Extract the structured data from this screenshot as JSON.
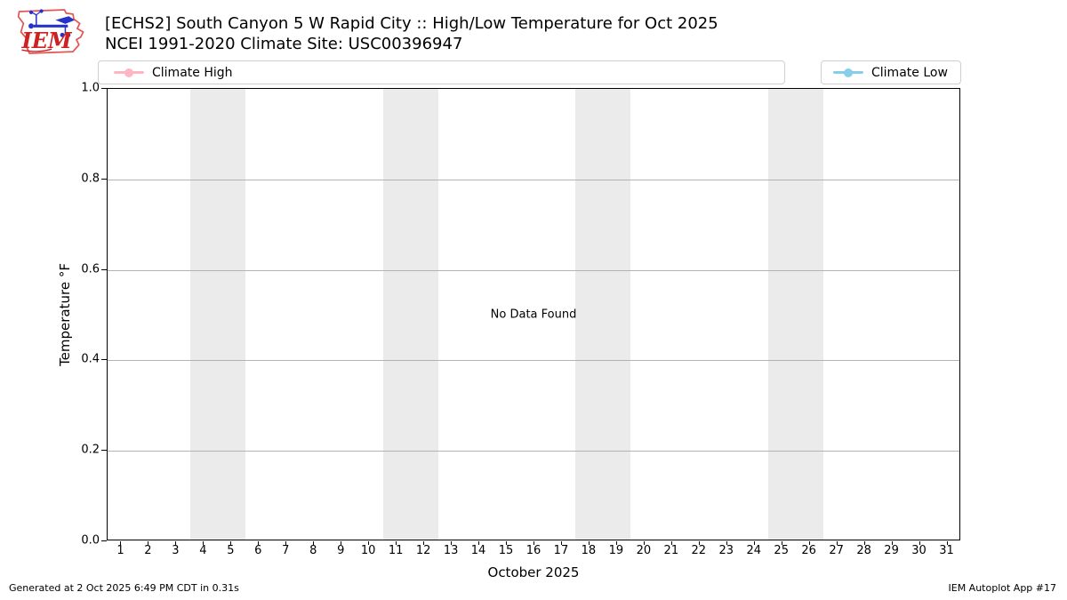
{
  "header": {
    "title_line1": "[ECHS2] South Canyon 5 W Rapid City :: High/Low Temperature for Oct 2025",
    "title_line2": "NCEI 1991-2020 Climate Site: USC00396947",
    "logo_text": "IEM"
  },
  "legend": {
    "high": {
      "label": "Climate High",
      "color": "#ffb6c1"
    },
    "low": {
      "label": "Climate Low",
      "color": "#87ceeb"
    }
  },
  "footer": {
    "generated": "Generated at 2 Oct 2025 6:49 PM CDT in 0.31s",
    "app": "IEM Autoplot App #17"
  },
  "chart_data": {
    "type": "line",
    "title": "[ECHS2] South Canyon 5 W Rapid City :: High/Low Temperature for Oct 2025",
    "subtitle": "NCEI 1991-2020 Climate Site: USC00396947",
    "xlabel": "October 2025",
    "ylabel": "Temperature °F",
    "xlim": [
      0.5,
      31.5
    ],
    "ylim": [
      0.0,
      1.0
    ],
    "x_ticks": [
      1,
      2,
      3,
      4,
      5,
      6,
      7,
      8,
      9,
      10,
      11,
      12,
      13,
      14,
      15,
      16,
      17,
      18,
      19,
      20,
      21,
      22,
      23,
      24,
      25,
      26,
      27,
      28,
      29,
      30,
      31
    ],
    "y_ticks": [
      "0.0",
      "0.2",
      "0.4",
      "0.6",
      "0.8",
      "1.0"
    ],
    "grid": "horizontal-only",
    "legend_position": "top: Climate High left box, Climate Low right box",
    "series": [
      {
        "name": "Climate High",
        "color": "#ffb6c1",
        "x": [],
        "values": []
      },
      {
        "name": "Climate Low",
        "color": "#87ceeb",
        "x": [],
        "values": []
      }
    ],
    "no_data_text": "No Data Found",
    "weekend_bands": [
      [
        3.5,
        5.5
      ],
      [
        10.5,
        12.5
      ],
      [
        17.5,
        19.5
      ],
      [
        24.5,
        26.5
      ]
    ],
    "band_color": "#ebebeb",
    "grid_color": "#b3b3b3"
  }
}
